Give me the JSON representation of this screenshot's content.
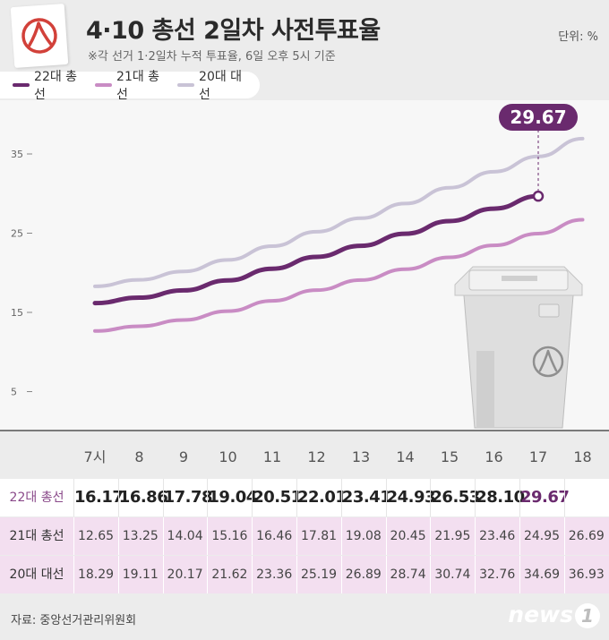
{
  "header": {
    "title": "4·10 총선 2일차 사전투표율",
    "subtitle": "※각 선거 1·2일차 누적 투표율, 6일 오후 5시 기준",
    "unit": "단위: %"
  },
  "legend": [
    {
      "label": "22대 총선",
      "color": "#6a2a6e"
    },
    {
      "label": "21대 총선",
      "color": "#c98cc4"
    },
    {
      "label": "20대 대선",
      "color": "#c9c3d6"
    }
  ],
  "callout": "29.67",
  "chart_data": {
    "type": "line",
    "x": [
      "7시",
      "8",
      "9",
      "10",
      "11",
      "12",
      "13",
      "14",
      "15",
      "16",
      "17",
      "18"
    ],
    "y_ticks": [
      5,
      15,
      25,
      35
    ],
    "ylim": [
      0,
      40
    ],
    "series": [
      {
        "name": "22대 총선",
        "color": "#6a2a6e",
        "values": [
          16.17,
          16.86,
          17.78,
          19.04,
          20.51,
          22.01,
          23.41,
          24.93,
          26.53,
          28.1,
          29.67,
          null
        ]
      },
      {
        "name": "21대 총선",
        "color": "#c98cc4",
        "values": [
          12.65,
          13.25,
          14.04,
          15.16,
          16.46,
          17.81,
          19.08,
          20.45,
          21.95,
          23.46,
          24.95,
          26.69
        ]
      },
      {
        "name": "20대 대선",
        "color": "#c9c3d6",
        "values": [
          18.29,
          19.11,
          20.17,
          21.62,
          23.36,
          25.19,
          26.89,
          28.74,
          30.74,
          32.76,
          34.69,
          36.93
        ]
      }
    ]
  },
  "table": {
    "rows": [
      {
        "label": "22대 총선",
        "values": [
          "16.17",
          "16.86",
          "17.78",
          "19.04",
          "20.51",
          "22.01",
          "23.41",
          "24.93",
          "26.53",
          "28.10",
          "29.67",
          ""
        ]
      },
      {
        "label": "21대 총선",
        "values": [
          "12.65",
          "13.25",
          "14.04",
          "15.16",
          "16.46",
          "17.81",
          "19.08",
          "20.45",
          "21.95",
          "23.46",
          "24.95",
          "26.69"
        ]
      },
      {
        "label": "20대 대선",
        "values": [
          "18.29",
          "19.11",
          "20.17",
          "21.62",
          "23.36",
          "25.19",
          "26.89",
          "28.74",
          "30.74",
          "32.76",
          "34.69",
          "36.93"
        ]
      }
    ]
  },
  "footer": {
    "source": "자료: 중앙선거관리위원회",
    "logo_text": "news",
    "logo_mark": "1"
  }
}
